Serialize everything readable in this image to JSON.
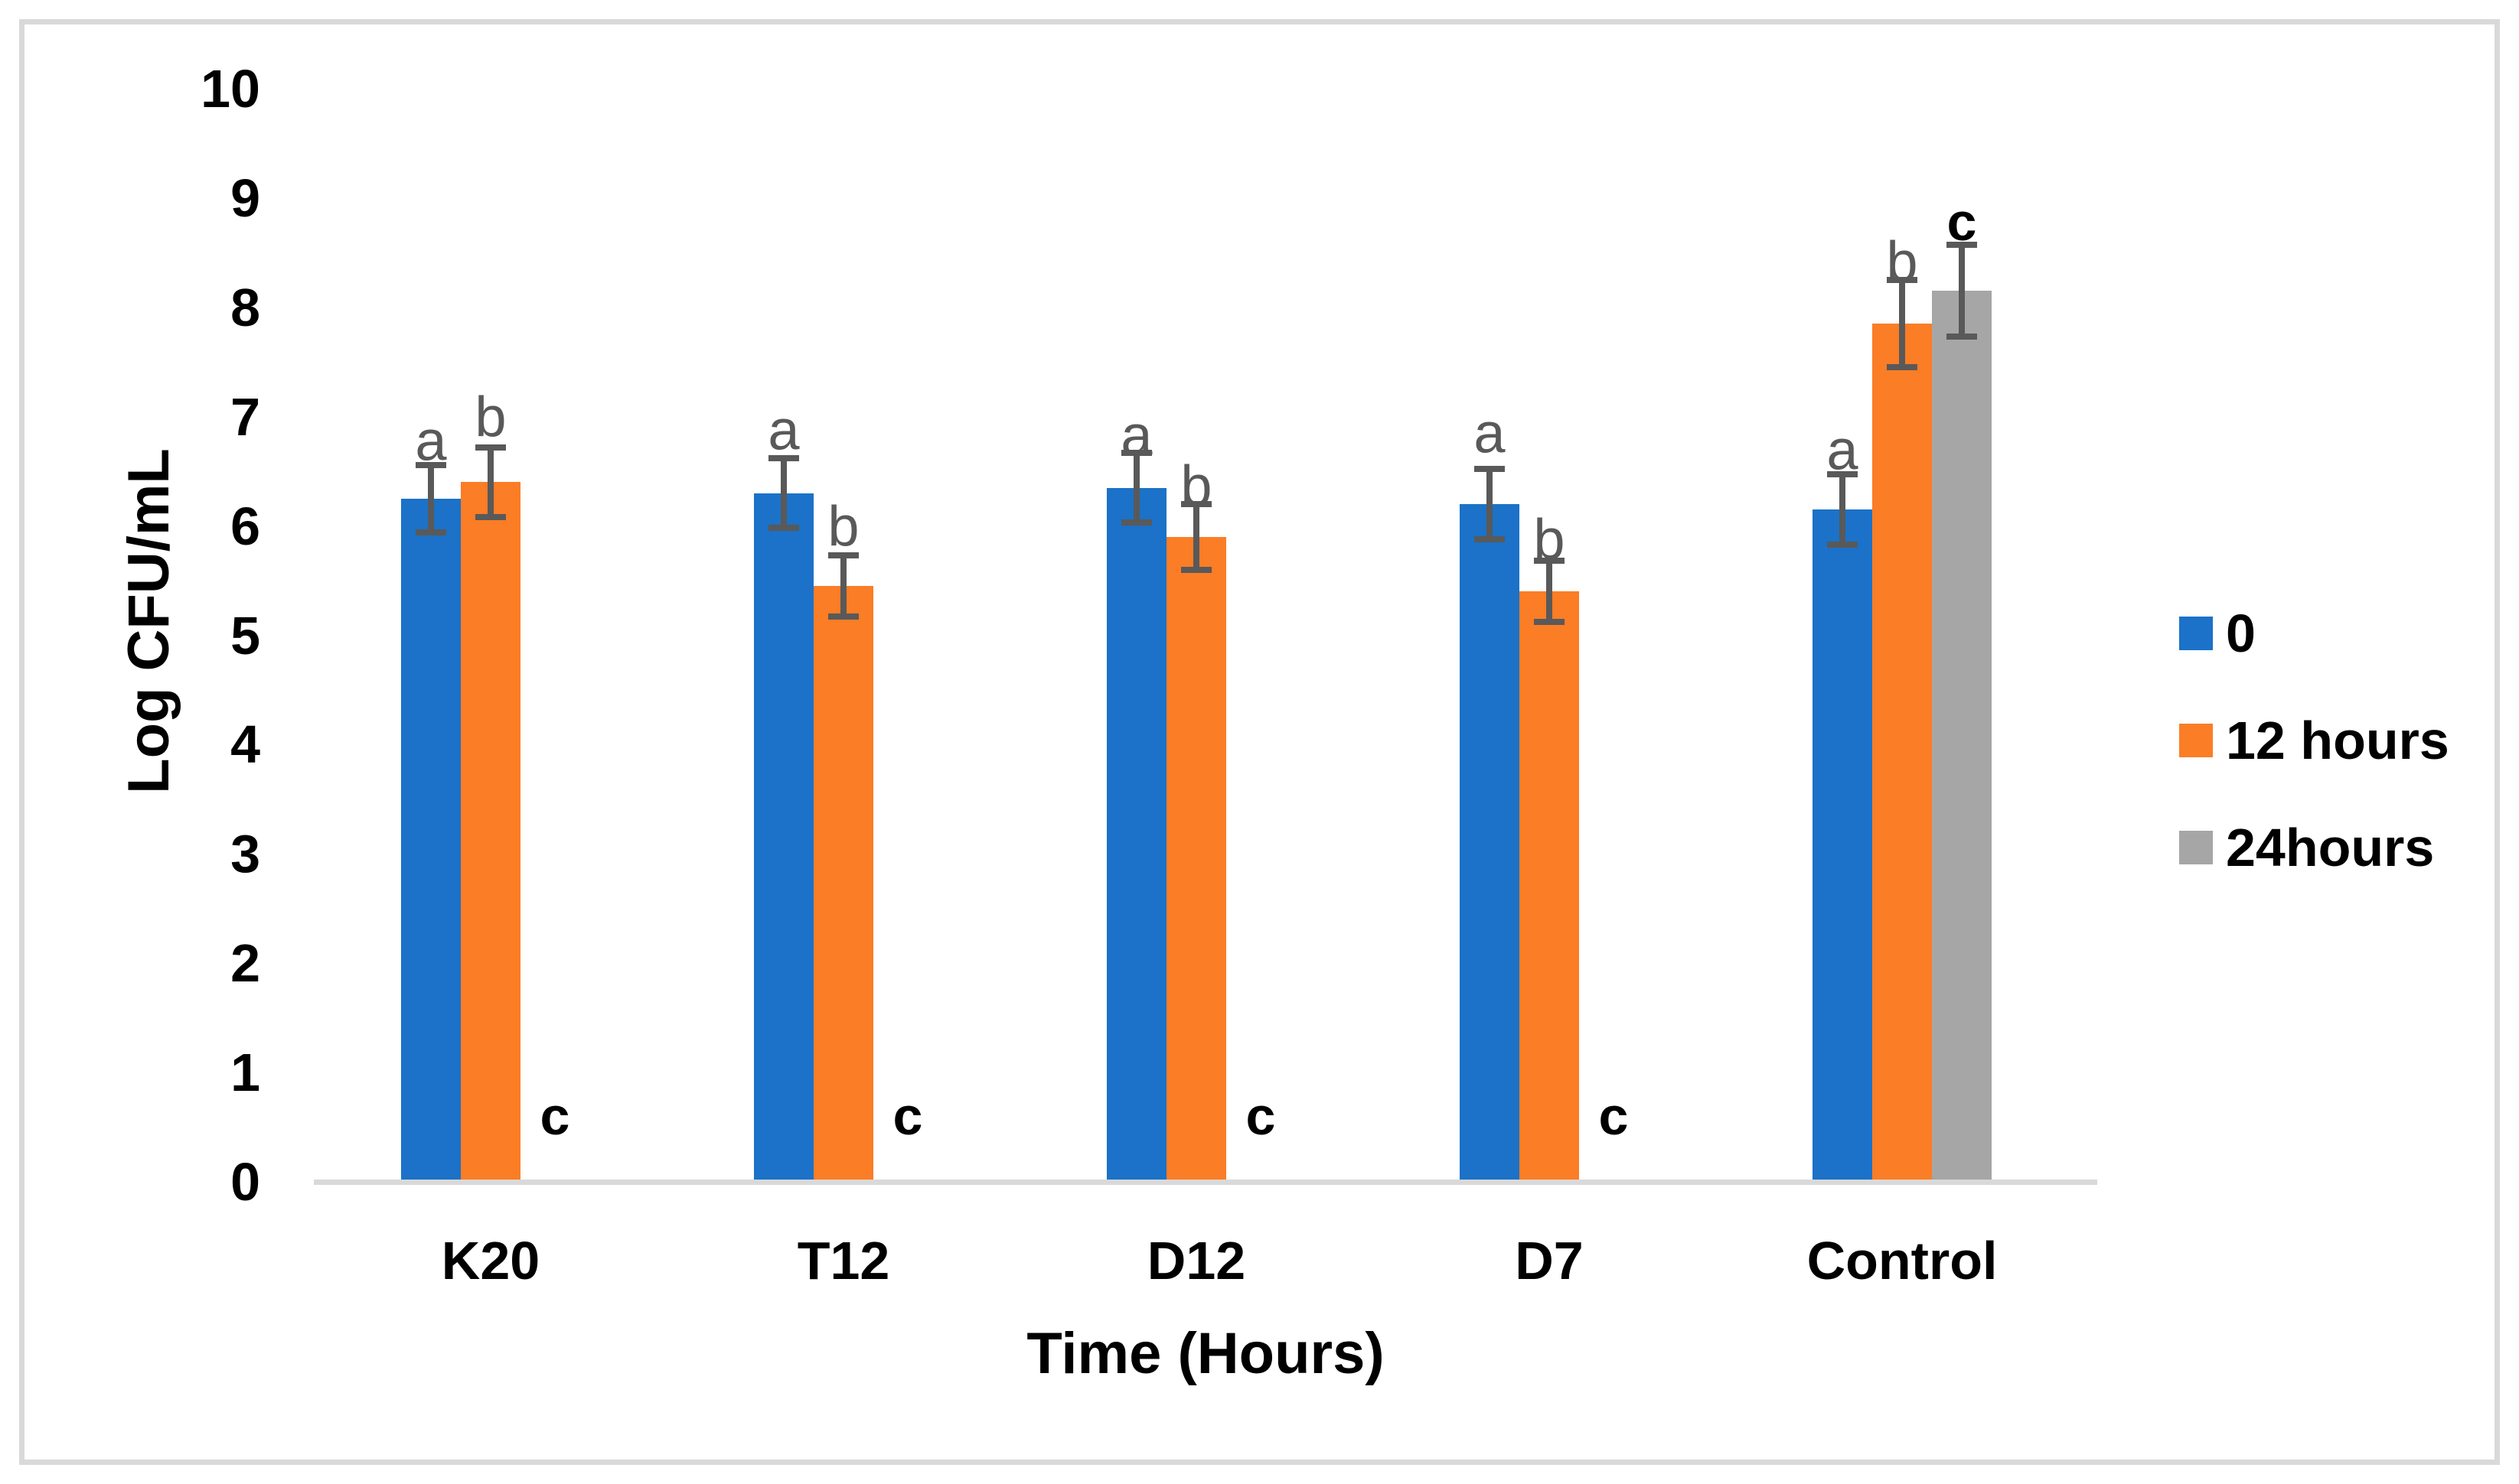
{
  "figure": {
    "border_color": "#D9D9D9",
    "background_color": "#FFFFFF"
  },
  "chart_data": {
    "type": "bar",
    "title": "",
    "xlabel": "Time (Hours)",
    "ylabel": "Log CFU/mL",
    "ylim": [
      0,
      10
    ],
    "yticks": [
      0,
      1,
      2,
      3,
      4,
      5,
      6,
      7,
      8,
      9,
      10
    ],
    "grid": false,
    "legend_position": "right-center",
    "categories": [
      "K20",
      "T12",
      "D12",
      "D7",
      "Control"
    ],
    "series": [
      {
        "name": "0",
        "color": "#1B72C8",
        "values": [
          6.25,
          6.3,
          6.35,
          6.2,
          6.15
        ],
        "errors": [
          0.31,
          0.32,
          0.32,
          0.32,
          0.32
        ],
        "letters": [
          "a",
          "a",
          "a",
          "a",
          "a"
        ],
        "letter_y": [
          6.78,
          6.88,
          6.83,
          6.85,
          6.7
        ]
      },
      {
        "name": "12 hours",
        "color": "#FB7D26",
        "values": [
          6.4,
          5.45,
          5.9,
          5.4,
          7.85
        ],
        "errors": [
          0.32,
          0.28,
          0.3,
          0.28,
          0.4
        ],
        "letters": [
          "b",
          "b",
          "b",
          "b",
          "b"
        ],
        "letter_y": [
          7.0,
          6.0,
          6.37,
          5.88,
          8.42
        ]
      },
      {
        "name": "24hours",
        "color": "#A6A6A6",
        "values": [
          0,
          0,
          0,
          0,
          8.15
        ],
        "errors": [
          0,
          0,
          0,
          0,
          0.42
        ],
        "letters": [
          "c",
          "c",
          "c",
          "c",
          "c"
        ],
        "letter_y": [
          0.6,
          0.6,
          0.6,
          0.6,
          8.78
        ]
      }
    ],
    "annotation_colors": {
      "a": "#595959",
      "b": "#595959",
      "c": "#000000"
    },
    "error_bar_color": "#595959",
    "axis_line_color": "#D9D9D9"
  },
  "legend": {
    "entries": [
      {
        "label": "0",
        "color": "#1B72C8"
      },
      {
        "label": "12 hours",
        "color": "#FB7D26"
      },
      {
        "label": "24hours",
        "color": "#A6A6A6"
      }
    ]
  }
}
